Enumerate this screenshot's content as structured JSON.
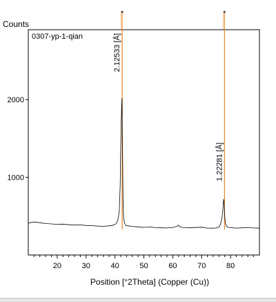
{
  "chart_data": {
    "type": "line",
    "title": "0307-yp-1-qian",
    "xlabel": "Position [°2Theta] (Copper (Cu))",
    "ylabel": "Counts",
    "xlim": [
      10,
      90
    ],
    "ylim": [
      0,
      2900
    ],
    "x_ticks": [
      20,
      30,
      40,
      50,
      60,
      70,
      80
    ],
    "y_ticks": [
      1000,
      2000
    ],
    "grid": false,
    "series": [
      {
        "name": "",
        "x": [
          10,
          12,
          14,
          16,
          18,
          20,
          22,
          24,
          26,
          28,
          30,
          32,
          34,
          36,
          38,
          39,
          40,
          40.5,
          41,
          41.5,
          41.8,
          42.0,
          42.2,
          42.4,
          42.6,
          42.8,
          43.0,
          43.3,
          43.8,
          44.5,
          46,
          48,
          50,
          52,
          54,
          56,
          58,
          60,
          61.5,
          62,
          62.5,
          64,
          66,
          68,
          70,
          72,
          74,
          75,
          76,
          76.5,
          77,
          77.3,
          77.6,
          77.8,
          78.0,
          78.3,
          78.6,
          79,
          80,
          82,
          84,
          86,
          88,
          90
        ],
        "y": [
          410,
          425,
          415,
          405,
          400,
          395,
          398,
          390,
          385,
          388,
          380,
          378,
          372,
          370,
          375,
          380,
          392,
          410,
          450,
          560,
          900,
          1400,
          1750,
          2020,
          1500,
          700,
          480,
          410,
          380,
          375,
          368,
          362,
          356,
          360,
          352,
          350,
          348,
          355,
          370,
          385,
          360,
          352,
          350,
          354,
          358,
          346,
          345,
          348,
          360,
          395,
          470,
          560,
          720,
          660,
          480,
          400,
          370,
          358,
          352,
          346,
          350,
          355,
          348,
          345
        ]
      }
    ],
    "reference_peaks": [
      {
        "position": 42.5,
        "label": "2.12533 [Å]"
      },
      {
        "position": 77.9,
        "label": "1.22281 [Å]"
      }
    ]
  },
  "colors": {
    "line": "#000000",
    "peak_marker": "#e8821e",
    "axis": "#000000"
  }
}
